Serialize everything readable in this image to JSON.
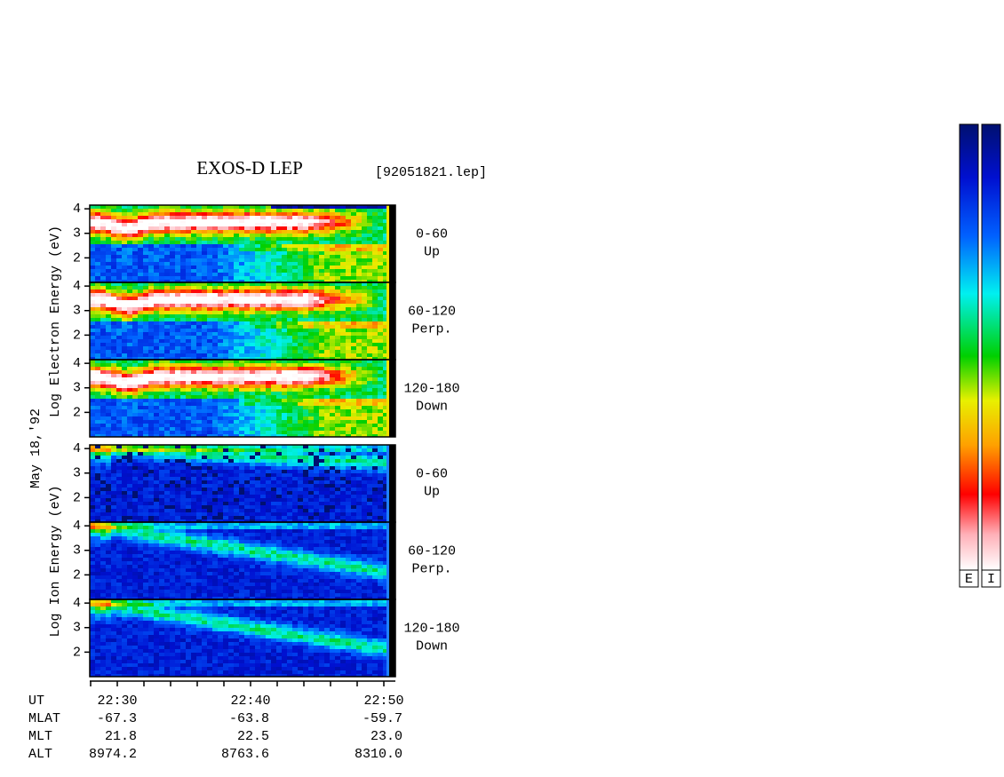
{
  "title": "EXOS-D LEP",
  "file": "[92051821.lep]",
  "side_labels": {
    "electron": "Log  Electron  Energy (eV)",
    "date": "May 18,'92",
    "ion": "Log  Ion  Energy (eV)"
  },
  "ylim": [
    1,
    4.15
  ],
  "yticks": [
    2,
    3,
    4
  ],
  "panels": [
    {
      "species": "electron",
      "angle": "0-60",
      "direction": "Up"
    },
    {
      "species": "electron",
      "angle": "60-120",
      "direction": "Perp."
    },
    {
      "species": "electron",
      "angle": "120-180",
      "direction": "Down"
    },
    {
      "species": "ion",
      "angle": "0-60",
      "direction": "Up"
    },
    {
      "species": "ion",
      "angle": "60-120",
      "direction": "Perp."
    },
    {
      "species": "ion",
      "angle": "120-180",
      "direction": "Down"
    }
  ],
  "rows": [
    {
      "label": "UT",
      "values": [
        "22:30",
        "22:40",
        "22:50"
      ]
    },
    {
      "label": "MLAT",
      "values": [
        "-67.3",
        "-63.8",
        "-59.7"
      ]
    },
    {
      "label": "MLT",
      "values": [
        "21.8",
        "22.5",
        "23.0"
      ]
    },
    {
      "label": "ALT",
      "values": [
        "8974.2",
        "8763.6",
        "8310.0"
      ]
    }
  ],
  "colorbars": [
    "E",
    "I"
  ]
}
